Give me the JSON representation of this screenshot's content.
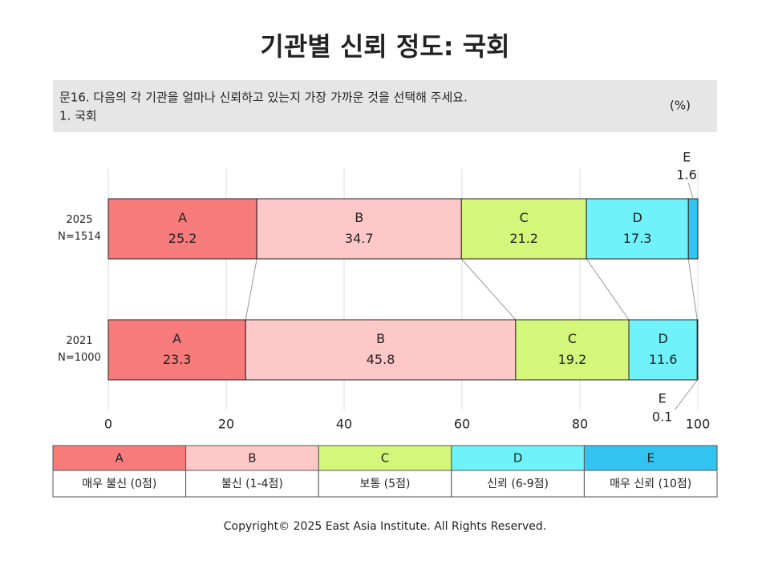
{
  "chart_data": {
    "type": "stacked-bar-horizontal",
    "title": "기관별 신뢰 정도: 국회",
    "question": {
      "text": "문16. 다음의 각 기관을 얼마나 신뢰하고 있는지 가장 가까운 것을 선택해 주세요.",
      "item": "1. 국회"
    },
    "unit": "(%)",
    "categories": [
      "2025",
      "2021"
    ],
    "sample_sizes": [
      "N=1514",
      "N=1000"
    ],
    "series": [
      {
        "name": "A",
        "description": "매우 불신 (0점)",
        "color": "#f77b7b",
        "values": [
          25.2,
          23.3
        ]
      },
      {
        "name": "B",
        "description": "불신 (1-4점)",
        "color": "#ffc8c8",
        "values": [
          34.7,
          45.8
        ]
      },
      {
        "name": "C",
        "description": "보통 (5점)",
        "color": "#d4f67a",
        "values": [
          21.2,
          19.2
        ]
      },
      {
        "name": "D",
        "description": "신뢰 (6-9점)",
        "color": "#70f2fa",
        "values": [
          17.3,
          11.6
        ]
      },
      {
        "name": "E",
        "description": "매우 신뢰 (10점)",
        "color": "#33c3f0",
        "values": [
          1.6,
          0.1
        ]
      }
    ],
    "xlim": [
      0,
      100
    ],
    "xticks": [
      0,
      20,
      40,
      60,
      80,
      100
    ],
    "grid": true,
    "copyright": "Copyright© 2025 East Asia Institute. All Rights Reserved."
  }
}
